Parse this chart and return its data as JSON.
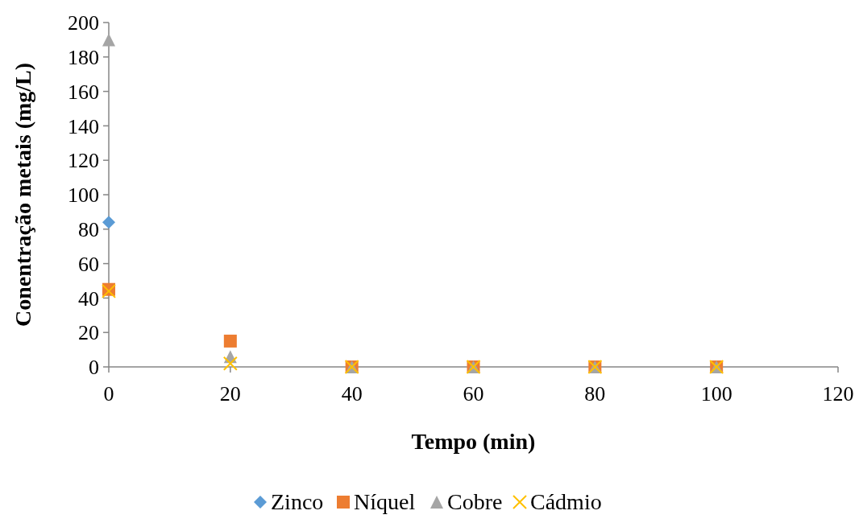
{
  "chart_data": {
    "type": "scatter",
    "xlabel": "Tempo (min)",
    "ylabel": "Conentração metais (mg/L)",
    "x": [
      0,
      20,
      40,
      60,
      80,
      100
    ],
    "xlim": [
      0,
      120
    ],
    "xticks": [
      0,
      20,
      40,
      60,
      80,
      100,
      120
    ],
    "ylim": [
      0,
      200
    ],
    "yticks": [
      0,
      20,
      40,
      60,
      80,
      100,
      120,
      140,
      160,
      180,
      200
    ],
    "grid": false,
    "legend": "bottom",
    "series": [
      {
        "name": "Zinco",
        "color": "#5b9bd5",
        "marker": "diamond",
        "values": [
          84,
          null,
          null,
          null,
          null,
          null
        ]
      },
      {
        "name": "Níquel",
        "color": "#ed7d31",
        "marker": "square",
        "values": [
          45,
          15,
          0,
          0,
          0,
          0
        ]
      },
      {
        "name": "Cobre",
        "color": "#a5a5a5",
        "marker": "triangle",
        "values": [
          190,
          6,
          0,
          0,
          0,
          0
        ]
      },
      {
        "name": "Cádmio",
        "color": "#ffc000",
        "marker": "cross",
        "values": [
          44,
          2,
          0,
          0,
          0,
          0
        ]
      }
    ]
  }
}
